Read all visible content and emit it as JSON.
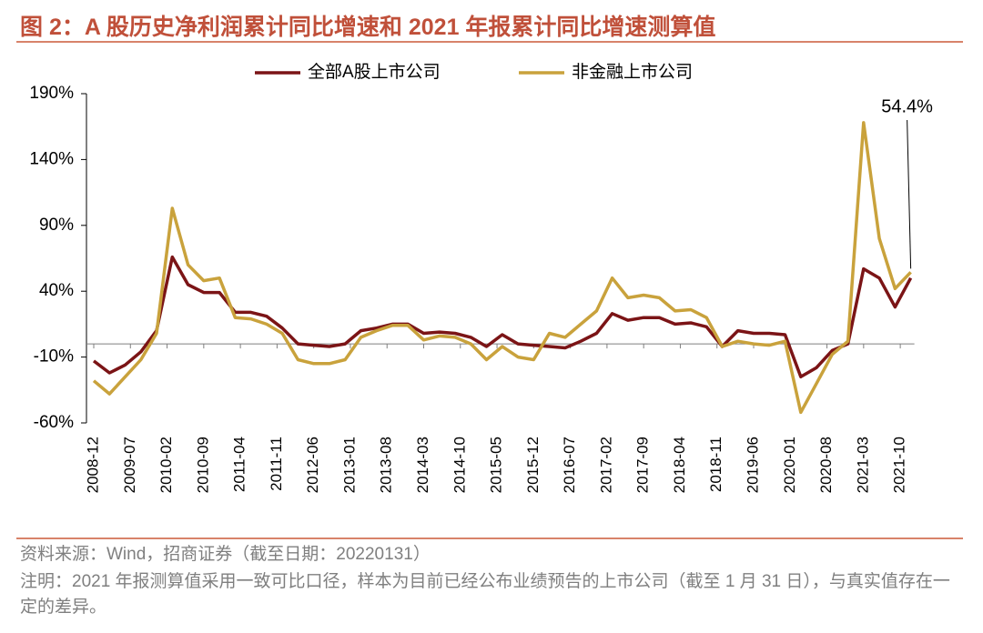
{
  "chart_data": {
    "type": "line",
    "title": "图 2：A 股历史净利润累计同比增速和 2021 年报累计同比增速测算值",
    "source": "资料来源：Wind，招商证券（截至日期：20220131）",
    "note": "注明：2021 年报测算值采用一致可比口径，样本为目前已经公布业绩预告的上市公司（截至 1 月 31 日），与真实值存在一定的差异。",
    "x": [
      "2008-12",
      "2009-03",
      "2009-06",
      "2009-09",
      "2009-12",
      "2010-03",
      "2010-06",
      "2010-09",
      "2010-12",
      "2011-03",
      "2011-06",
      "2011-09",
      "2011-12",
      "2012-03",
      "2012-06",
      "2012-09",
      "2012-12",
      "2013-03",
      "2013-06",
      "2013-09",
      "2013-12",
      "2014-03",
      "2014-06",
      "2014-09",
      "2014-12",
      "2015-03",
      "2015-06",
      "2015-09",
      "2015-12",
      "2016-03",
      "2016-06",
      "2016-09",
      "2016-12",
      "2017-03",
      "2017-06",
      "2017-09",
      "2017-12",
      "2018-03",
      "2018-06",
      "2018-09",
      "2018-12",
      "2019-03",
      "2019-06",
      "2019-09",
      "2019-12",
      "2020-03",
      "2020-06",
      "2020-09",
      "2020-12",
      "2021-03",
      "2021-06",
      "2021-09",
      "2021-12"
    ],
    "series": [
      {
        "name": "全部A股上市公司",
        "color": "#7b1416",
        "values": [
          -13,
          -22,
          -16,
          -6,
          10,
          66,
          45,
          39,
          39,
          24,
          24,
          21,
          12,
          0,
          -1,
          -2,
          0,
          10,
          12,
          15,
          15,
          8,
          9,
          8,
          5,
          -2,
          7,
          0,
          -1,
          -2,
          -3,
          2,
          8,
          23,
          18,
          20,
          20,
          15,
          16,
          13,
          -2,
          10,
          8,
          8,
          7,
          -25,
          -18,
          -5,
          0,
          57,
          50,
          28,
          50
        ]
      },
      {
        "name": "非金融上市公司",
        "color": "#c9a23c",
        "values": [
          -28,
          -38,
          -25,
          -12,
          8,
          103,
          60,
          48,
          50,
          20,
          19,
          15,
          8,
          -12,
          -15,
          -15,
          -12,
          5,
          10,
          14,
          14,
          3,
          6,
          5,
          0,
          -12,
          -2,
          -10,
          -12,
          8,
          5,
          15,
          25,
          50,
          35,
          37,
          35,
          25,
          26,
          20,
          -2,
          2,
          0,
          -1,
          2,
          -52,
          -30,
          -8,
          2,
          168,
          80,
          42,
          54.4
        ],
        "value_labels": [
          null,
          null,
          null,
          null,
          null,
          null,
          null,
          null,
          null,
          null,
          null,
          null,
          null,
          null,
          null,
          null,
          null,
          null,
          null,
          null,
          null,
          null,
          null,
          null,
          null,
          null,
          null,
          null,
          null,
          null,
          null,
          null,
          null,
          null,
          null,
          null,
          null,
          null,
          null,
          null,
          null,
          null,
          null,
          null,
          null,
          null,
          null,
          null,
          null,
          null,
          null,
          null,
          "54.4%"
        ]
      }
    ],
    "xticks": [
      "2008-12",
      "2009-07",
      "2010-02",
      "2010-09",
      "2011-04",
      "2011-11",
      "2012-06",
      "2013-01",
      "2013-08",
      "2014-03",
      "2014-10",
      "2015-05",
      "2015-12",
      "2016-07",
      "2017-02",
      "2017-09",
      "2018-04",
      "2018-11",
      "2019-06",
      "2020-01",
      "2020-08",
      "2021-03",
      "2021-10"
    ],
    "ylim": [
      -60,
      190
    ],
    "yticks": [
      {
        "value": -60,
        "label": "-60%"
      },
      {
        "value": -10,
        "label": "-10%"
      },
      {
        "value": 40,
        "label": "40%"
      },
      {
        "value": 90,
        "label": "90%"
      },
      {
        "value": 140,
        "label": "140%"
      },
      {
        "value": 190,
        "label": "190%"
      }
    ],
    "legend": "top",
    "grid": false
  }
}
